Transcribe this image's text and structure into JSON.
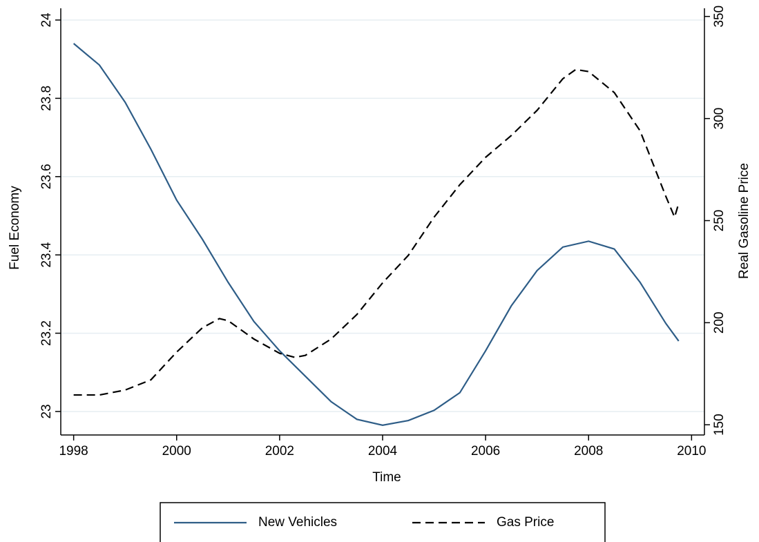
{
  "chart_data": {
    "type": "line",
    "x_label": "Time",
    "y_label": "Fuel Economy",
    "y2_label": "Real Gasoline Price",
    "xlim": [
      1997.75,
      2010.25
    ],
    "xticks": [
      1998,
      2000,
      2002,
      2004,
      2006,
      2008,
      2010
    ],
    "ylim": [
      22.94,
      24.03
    ],
    "yticks": [
      23,
      23.2,
      23.4,
      23.6,
      23.8,
      24
    ],
    "y2lim": [
      145,
      354
    ],
    "y2ticks": [
      150,
      200,
      250,
      300,
      350
    ],
    "grid": true,
    "legend": "bottom",
    "series": [
      {
        "name": "New Vehicles",
        "color": "#2e5d87",
        "dash": "solid",
        "axis": "y",
        "x": [
          1998,
          1998.5,
          1999,
          1999.5,
          2000,
          2000.5,
          2001,
          2001.5,
          2002,
          2002.5,
          2003,
          2003.5,
          2004,
          2004.5,
          2005,
          2005.5,
          2006,
          2006.5,
          2007,
          2007.5,
          2008,
          2008.5,
          2009,
          2009.5,
          2009.75
        ],
        "values": [
          23.94,
          23.885,
          23.79,
          23.67,
          23.54,
          23.44,
          23.33,
          23.23,
          23.155,
          23.09,
          23.025,
          22.98,
          22.965,
          22.977,
          23.003,
          23.048,
          23.155,
          23.27,
          23.36,
          23.42,
          23.435,
          23.415,
          23.33,
          23.225,
          23.18
        ]
      },
      {
        "name": "Gas Price",
        "color": "#000000",
        "dash": "dashed",
        "axis": "y2",
        "x": [
          1998,
          1998.5,
          1999,
          1999.5,
          2000,
          2000.5,
          2000.83,
          2001,
          2001.5,
          2002,
          2002.3,
          2002.5,
          2003,
          2003.5,
          2004,
          2004.5,
          2005,
          2005.5,
          2006,
          2006.5,
          2007,
          2007.5,
          2007.75,
          2008,
          2008.5,
          2009,
          2009.5,
          2009.67,
          2009.75
        ],
        "values": [
          164.6,
          164.6,
          167,
          172,
          185.6,
          197.5,
          202,
          201,
          192,
          185,
          183,
          184,
          192,
          204,
          219.5,
          233,
          251.7,
          267.6,
          281,
          291.7,
          304,
          319.5,
          324,
          323,
          312.7,
          294,
          261.9,
          251.7,
          258.5
        ]
      }
    ]
  }
}
